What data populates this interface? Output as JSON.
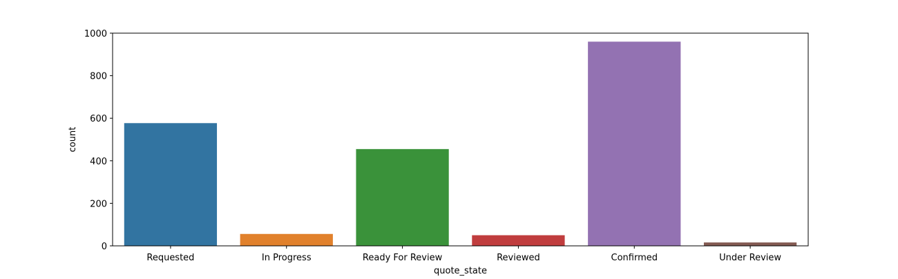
{
  "chart_data": {
    "type": "bar",
    "title": "",
    "xlabel": "quote_state",
    "ylabel": "count",
    "ylim": [
      0,
      1000
    ],
    "yticks": [
      0,
      200,
      400,
      600,
      800,
      1000
    ],
    "grid": false,
    "categories": [
      "Requested",
      "In Progress",
      "Ready For Review",
      "Reviewed",
      "Confirmed",
      "Under Review"
    ],
    "values": [
      577,
      56,
      455,
      50,
      960,
      16
    ],
    "colors": [
      "#3274a1",
      "#e1812c",
      "#3a923a",
      "#c03d3e",
      "#9372b2",
      "#845b53"
    ]
  }
}
